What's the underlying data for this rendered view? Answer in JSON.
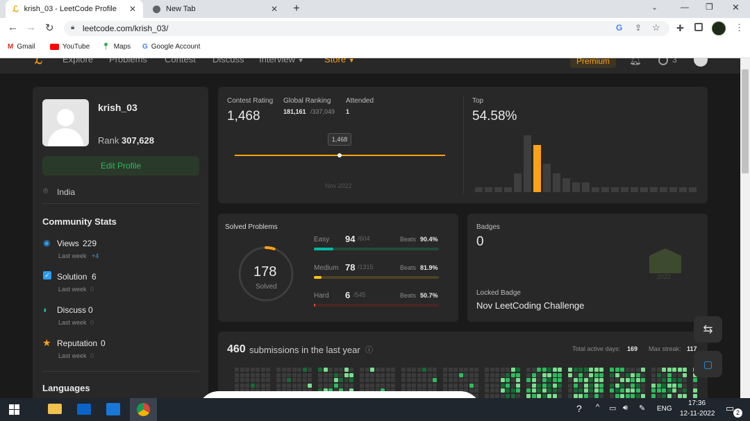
{
  "browser": {
    "tabs": [
      {
        "title": "krish_03 - LeetCode Profile",
        "active": true
      },
      {
        "title": "New Tab",
        "active": false
      }
    ],
    "new_tab_symbol": "+",
    "url": "leetcode.com/krish_03/",
    "bookmarks": [
      "Gmail",
      "YouTube",
      "Maps",
      "Google Account"
    ]
  },
  "nav": {
    "items": [
      "Explore",
      "Problems",
      "Contest",
      "Discuss",
      "Interview",
      "Store"
    ],
    "premium_label": "Premium",
    "notif_count": "3"
  },
  "profile": {
    "username": "krish_03",
    "rank_label": "Rank",
    "rank_value": "307,628",
    "edit_label": "Edit Profile",
    "location": "India"
  },
  "community": {
    "title": "Community Stats",
    "items": [
      {
        "label": "Views",
        "value": "229",
        "sub": "Last week",
        "delta": "+4"
      },
      {
        "label": "Solution",
        "value": "6",
        "sub": "Last week",
        "delta": "0"
      },
      {
        "label": "Discuss",
        "value": "0",
        "sub": "Last week",
        "delta": "0"
      },
      {
        "label": "Reputation",
        "value": "0",
        "sub": "Last week",
        "delta": "0"
      }
    ],
    "languages_title": "Languages"
  },
  "contest": {
    "rating_label": "Contest Rating",
    "rating_value": "1,468",
    "global_label": "Global Ranking",
    "global_value": "181,161",
    "global_total": "/337,049",
    "attended_label": "Attended",
    "attended_value": "1",
    "tooltip": "1,468",
    "date": "Nov 2022",
    "top_label": "Top",
    "top_value": "54.58%",
    "histogram": [
      1,
      1,
      1,
      1,
      4,
      12,
      10,
      6,
      4,
      3,
      2,
      2,
      1,
      1,
      1,
      1,
      1,
      1,
      1,
      1,
      1,
      1,
      1
    ],
    "highlight_index": 6,
    "accent": "#ffa116"
  },
  "solved": {
    "title": "Solved Problems",
    "total": "178",
    "total_label": "Solved",
    "progress_fraction": 0.05,
    "rows": [
      {
        "name": "Easy",
        "count": "94",
        "total": "/604",
        "beats_label": "Beats",
        "beats": "90.4%",
        "fraction": 0.156,
        "color": "#00b8a3"
      },
      {
        "name": "Medium",
        "count": "78",
        "total": "/1315",
        "beats_label": "Beats",
        "beats": "81.9%",
        "fraction": 0.059,
        "color": "#ffc01e"
      },
      {
        "name": "Hard",
        "count": "6",
        "total": "/545",
        "beats_label": "Beats",
        "beats": "50.7%",
        "fraction": 0.011,
        "color": "#ef4743"
      }
    ]
  },
  "badges": {
    "title": "Badges",
    "count": "0",
    "locked_label": "Locked Badge",
    "locked_name": "Nov LeetCoding Challenge",
    "badge_year": "2022"
  },
  "submissions": {
    "count": "460",
    "text": "submissions in the last year",
    "active_label": "Total active days:",
    "active_value": "169",
    "streak_label": "Max streak:",
    "streak_value": "117"
  },
  "taskbar": {
    "lang": "ENG",
    "time": "17:36",
    "date": "12-11-2022",
    "notif": "2"
  }
}
